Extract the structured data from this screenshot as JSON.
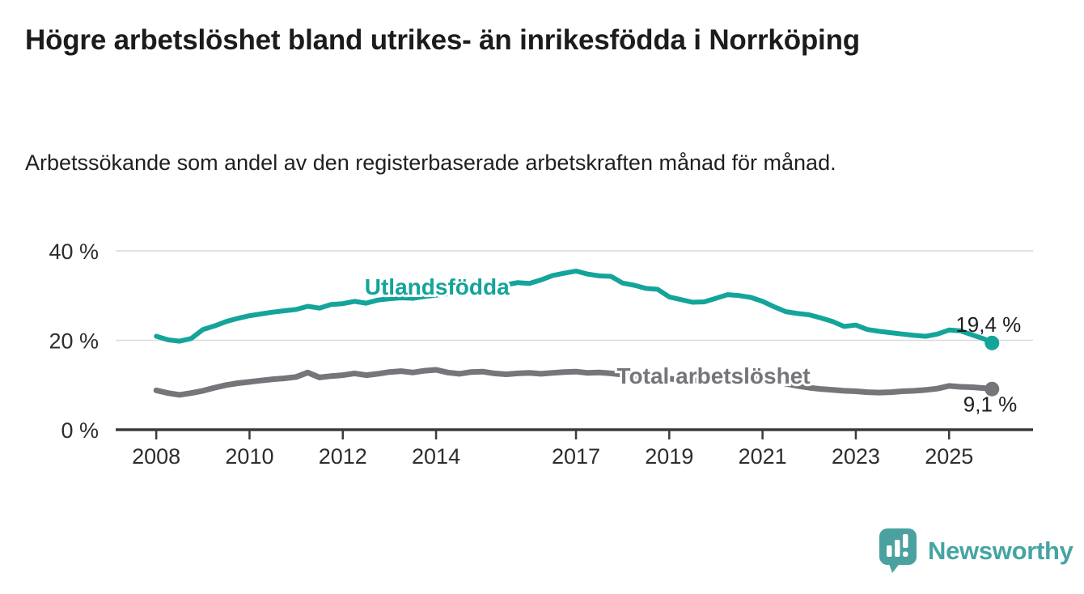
{
  "header": {
    "title": "Högre arbetslöshet bland utrikes- än inrikesfödda i Norrköping",
    "subtitle": "Arbetssökande som andel av den registerbaserade arbetskraften månad för månad."
  },
  "footer": {
    "brand": "Newsworthy",
    "brand_color": "#46a4a2",
    "logo_icon": "speech-bubble-bar-chart-icon"
  },
  "colors": {
    "foreign_born_line": "#14a49a",
    "total_line": "#7b7b7e",
    "grid_line": "#d9d9d9",
    "axis_line": "#3b3b3b",
    "axis_text": "#2d2d2d",
    "annotation_text": "#1e1e1e",
    "background": "#ffffff"
  },
  "chart_data": {
    "type": "line",
    "title": "Högre arbetslöshet bland utrikes- än inrikesfödda i Norrköping",
    "subtitle": "Arbetssökande som andel av den registerbaserade arbetskraften månad för månad.",
    "xlabel": "",
    "ylabel": "",
    "grid": "horizontal",
    "legend_position": "inline-labels",
    "xlim": [
      2007.13,
      2026.8
    ],
    "ylim": [
      0,
      40
    ],
    "x_ticks": [
      2008,
      2010,
      2012,
      2014,
      2017,
      2019,
      2021,
      2023,
      2025
    ],
    "y_ticks": [
      0,
      20,
      40
    ],
    "y_tick_labels": [
      "0 %",
      "20 %",
      "40 %"
    ],
    "x": [
      2008,
      2008.25,
      2008.5,
      2008.75,
      2009,
      2009.25,
      2009.5,
      2009.75,
      2010,
      2010.25,
      2010.5,
      2010.75,
      2011,
      2011.25,
      2011.5,
      2011.75,
      2012,
      2012.25,
      2012.5,
      2012.75,
      2013,
      2013.25,
      2013.5,
      2013.75,
      2014,
      2014.25,
      2014.5,
      2014.75,
      2015,
      2015.25,
      2015.5,
      2015.75,
      2016,
      2016.25,
      2016.5,
      2016.75,
      2017,
      2017.25,
      2017.5,
      2017.75,
      2018,
      2018.25,
      2018.5,
      2018.75,
      2019,
      2019.25,
      2019.5,
      2019.75,
      2020,
      2020.25,
      2020.5,
      2020.75,
      2021,
      2021.25,
      2021.5,
      2021.75,
      2022,
      2022.25,
      2022.5,
      2022.75,
      2023,
      2023.25,
      2023.5,
      2023.75,
      2024,
      2024.25,
      2024.5,
      2024.75,
      2025,
      2025.25,
      2025.5,
      2025.75,
      2025.92
    ],
    "series": [
      {
        "name": "Utlandsfödda",
        "color": "#14a49a",
        "end_label": "19,4 %",
        "end_value": 19.4,
        "label_at": {
          "year": 2014.02,
          "value": 30.2
        },
        "values": [
          20.9,
          20.1,
          19.8,
          20.4,
          22.4,
          23.2,
          24.2,
          24.9,
          25.5,
          25.9,
          26.3,
          26.6,
          26.9,
          27.6,
          27.2,
          28.0,
          28.2,
          28.7,
          28.3,
          29.0,
          29.3,
          29.5,
          29.4,
          29.8,
          30.1,
          30.4,
          30.8,
          31.1,
          31.5,
          31.9,
          32.4,
          32.9,
          32.7,
          33.5,
          34.5,
          35.0,
          35.5,
          34.8,
          34.4,
          34.3,
          32.8,
          32.3,
          31.6,
          31.4,
          29.7,
          29.1,
          28.5,
          28.6,
          29.4,
          30.2,
          30.0,
          29.6,
          28.7,
          27.5,
          26.4,
          26.0,
          25.7,
          25.0,
          24.2,
          23.1,
          23.4,
          22.4,
          22.0,
          21.7,
          21.4,
          21.1,
          20.9,
          21.4,
          22.3,
          22.1,
          21.2,
          20.3,
          19.4
        ]
      },
      {
        "name": "Total arbetslöshet",
        "color": "#76767a",
        "end_label": "9,1 %",
        "end_value": 9.1,
        "label_at": {
          "year": 2019.95,
          "value": 10.3
        },
        "values": [
          8.8,
          8.2,
          7.8,
          8.2,
          8.7,
          9.4,
          10.0,
          10.4,
          10.7,
          11.0,
          11.3,
          11.5,
          11.8,
          12.8,
          11.7,
          12.0,
          12.2,
          12.6,
          12.2,
          12.5,
          12.9,
          13.1,
          12.8,
          13.2,
          13.4,
          12.8,
          12.5,
          12.9,
          13.0,
          12.6,
          12.4,
          12.6,
          12.7,
          12.5,
          12.7,
          12.9,
          13.0,
          12.7,
          12.8,
          12.6,
          12.3,
          12.0,
          11.8,
          11.6,
          11.4,
          11.2,
          11.0,
          11.1,
          11.4,
          12.1,
          12.3,
          11.9,
          11.3,
          10.8,
          10.3,
          9.8,
          9.4,
          9.1,
          8.9,
          8.7,
          8.6,
          8.4,
          8.3,
          8.4,
          8.6,
          8.7,
          8.9,
          9.2,
          9.8,
          9.6,
          9.5,
          9.3,
          9.1
        ]
      }
    ]
  }
}
